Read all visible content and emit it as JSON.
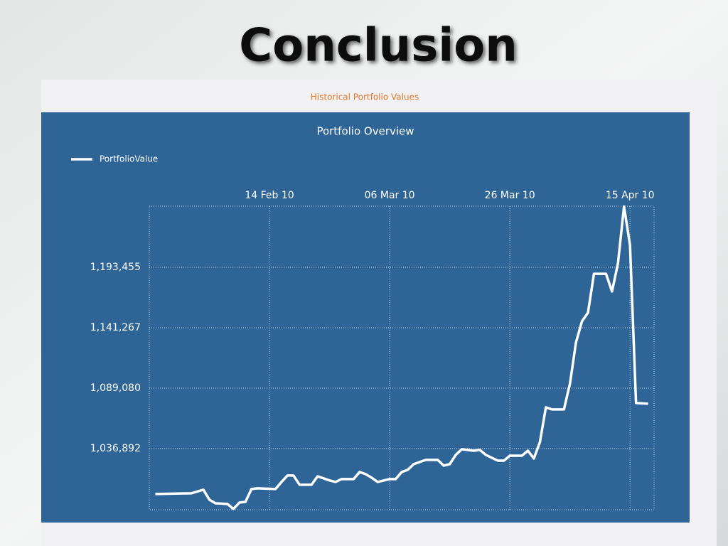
{
  "slide_title": "Conclusion",
  "panel_title": "Historical Portfolio Values",
  "chart_data": {
    "type": "line",
    "title": "Portfolio Overview",
    "x": [
      "2010-01-26",
      "2010-02-01",
      "2010-02-03",
      "2010-02-04",
      "2010-02-05",
      "2010-02-07",
      "2010-02-08",
      "2010-02-09",
      "2010-02-10",
      "2010-02-11",
      "2010-02-12",
      "2010-02-15",
      "2010-02-16",
      "2010-02-17",
      "2010-02-18",
      "2010-02-19",
      "2010-02-21",
      "2010-02-22",
      "2010-02-24",
      "2010-02-25",
      "2010-02-26",
      "2010-02-28",
      "2010-03-01",
      "2010-03-02",
      "2010-03-03",
      "2010-03-04",
      "2010-03-06",
      "2010-03-07",
      "2010-03-08",
      "2010-03-09",
      "2010-03-10",
      "2010-03-12",
      "2010-03-14",
      "2010-03-15",
      "2010-03-16",
      "2010-03-17",
      "2010-03-18",
      "2010-03-20",
      "2010-03-21",
      "2010-03-22",
      "2010-03-23",
      "2010-03-24",
      "2010-03-25",
      "2010-03-26",
      "2010-03-28",
      "2010-03-29",
      "2010-03-30",
      "2010-03-31",
      "2010-04-01",
      "2010-04-02",
      "2010-04-04",
      "2010-04-05",
      "2010-04-06",
      "2010-04-07",
      "2010-04-08",
      "2010-04-09",
      "2010-04-11",
      "2010-04-12",
      "2010-04-13",
      "2010-04-14",
      "2010-04-15",
      "2010-04-16",
      "2010-04-18"
    ],
    "series": [
      {
        "name": "PortfolioValue",
        "color": "#ffffff",
        "values": [
          997600,
          998200,
          1001300,
          992700,
          989600,
          989000,
          984700,
          990200,
          990800,
          1001900,
          1002500,
          1001900,
          1008000,
          1013600,
          1013600,
          1005600,
          1005600,
          1012900,
          1009300,
          1008000,
          1010500,
          1010500,
          1016600,
          1014800,
          1011700,
          1008000,
          1010500,
          1010500,
          1016600,
          1018500,
          1023400,
          1027100,
          1027100,
          1022100,
          1023400,
          1031400,
          1036300,
          1035000,
          1035700,
          1031400,
          1028900,
          1026400,
          1026400,
          1030700,
          1030700,
          1035000,
          1028300,
          1042400,
          1072500,
          1070700,
          1070700,
          1092800,
          1128400,
          1146800,
          1154200,
          1187900,
          1187900,
          1172600,
          1197100,
          1246000,
          1212500,
          1076200,
          1075600
        ]
      }
    ],
    "xlim": [
      "2010-01-25",
      "2010-04-19"
    ],
    "xticks": [
      {
        "value": "2010-02-14",
        "label": "14 Feb 10"
      },
      {
        "value": "2010-03-06",
        "label": "06 Mar 10"
      },
      {
        "value": "2010-03-26",
        "label": "26 Mar 10"
      },
      {
        "value": "2010-04-15",
        "label": "15 Apr 10"
      }
    ],
    "ylim": [
      984000,
      1246300
    ],
    "yticks": [
      {
        "value": 1036892,
        "label": "1,036,892"
      },
      {
        "value": 1089080,
        "label": "1,089,080"
      },
      {
        "value": 1141267,
        "label": "1,141,267"
      },
      {
        "value": 1193455,
        "label": "1,193,455"
      }
    ],
    "grid": true,
    "legend": "top-left",
    "background": "#2e6496"
  }
}
